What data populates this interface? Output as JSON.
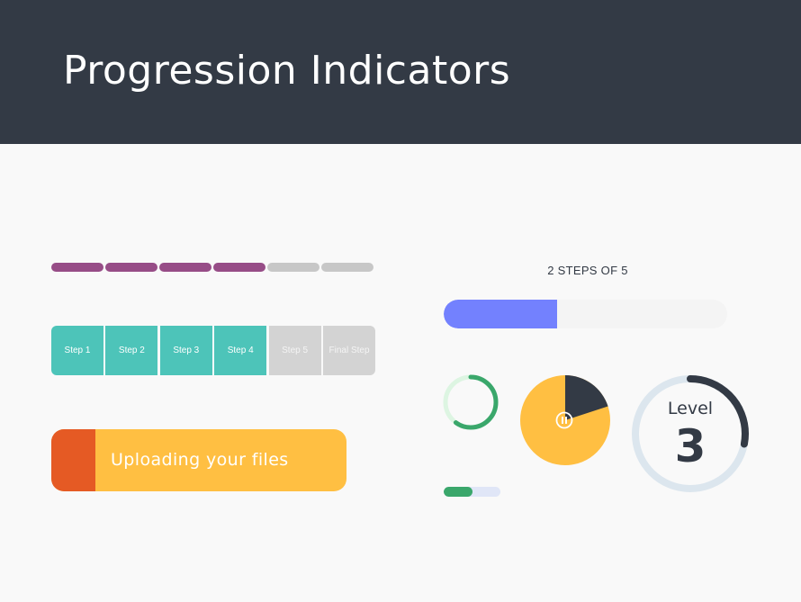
{
  "header": {
    "title": "Progression Indicators"
  },
  "dash_progress": {
    "total": 6,
    "completed": 4,
    "colors": {
      "done": "#974d87",
      "todo": "#c7c7c7"
    }
  },
  "step_boxes": {
    "items": [
      {
        "label": "Step 1",
        "state": "done"
      },
      {
        "label": "Step 2",
        "state": "done"
      },
      {
        "label": "Step 3",
        "state": "done"
      },
      {
        "label": "Step 4",
        "state": "done"
      },
      {
        "label": "Step 5",
        "state": "todo"
      },
      {
        "label": "Final Step",
        "state": "todo"
      }
    ],
    "colors": {
      "done": "#4dc4b9",
      "todo": "#d3d3d3",
      "todo_text": "#f4f4f4"
    }
  },
  "upload": {
    "label": "Uploading your files",
    "progress": 0.15,
    "colors": {
      "fill": "#e55a24",
      "track": "#ffbf42"
    }
  },
  "step_counter": {
    "label": "2 STEPS OF 5",
    "current": 2,
    "total": 5,
    "colors": {
      "fill": "#7381fe",
      "track": "#f4f4f4"
    }
  },
  "ring_spinner": {
    "progress": 0.6,
    "colors": {
      "arc": "#3aa76b",
      "track": "#ddf5e2"
    }
  },
  "pie_timer": {
    "progress": 0.2,
    "icon": "pause-icon",
    "colors": {
      "elapsed": "#333a45",
      "remaining": "#ffbf42",
      "icon": "#ffffff"
    }
  },
  "level_ring": {
    "label": "Level",
    "number": "3",
    "progress": 0.28,
    "colors": {
      "arc": "#333a45",
      "track": "#dce6ee"
    }
  },
  "mini_bar": {
    "progress": 0.5,
    "colors": {
      "fill": "#3aa76b",
      "track": "#e0e6f7"
    }
  }
}
